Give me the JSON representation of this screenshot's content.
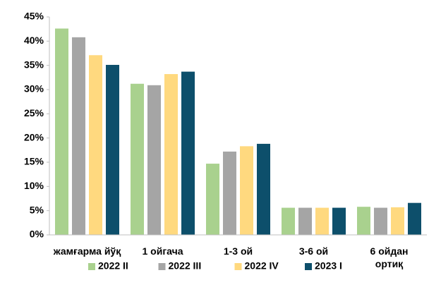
{
  "chart_data": {
    "type": "bar",
    "categories": [
      "жамғарма йўқ",
      "1 ойгача",
      "1-3 ой",
      "3-6 ой",
      "6 ойдан ортиқ"
    ],
    "series": [
      {
        "name": "2022 II",
        "color": "#a9d18e",
        "values": [
          42.6,
          31.2,
          14.7,
          5.6,
          5.8
        ]
      },
      {
        "name": "2022 III",
        "color": "#a5a5a5",
        "values": [
          40.8,
          30.9,
          17.2,
          5.6,
          5.6
        ]
      },
      {
        "name": "2022 IV",
        "color": "#ffd97f",
        "values": [
          37.1,
          33.2,
          18.3,
          5.6,
          5.7
        ]
      },
      {
        "name": "2023 I",
        "color": "#0d4f6b",
        "values": [
          35.1,
          33.7,
          18.8,
          5.6,
          6.6
        ]
      }
    ],
    "ylim": [
      0,
      45
    ],
    "yticks": [
      {
        "value": 0,
        "label": "0%"
      },
      {
        "value": 5,
        "label": "5%"
      },
      {
        "value": 10,
        "label": "10%"
      },
      {
        "value": 15,
        "label": "15%"
      },
      {
        "value": 20,
        "label": "20%"
      },
      {
        "value": 25,
        "label": "25%"
      },
      {
        "value": 30,
        "label": "30%"
      },
      {
        "value": 35,
        "label": "35%"
      },
      {
        "value": 40,
        "label": "40%"
      },
      {
        "value": 45,
        "label": "45%"
      }
    ],
    "grid": false,
    "legend": "bottom"
  }
}
